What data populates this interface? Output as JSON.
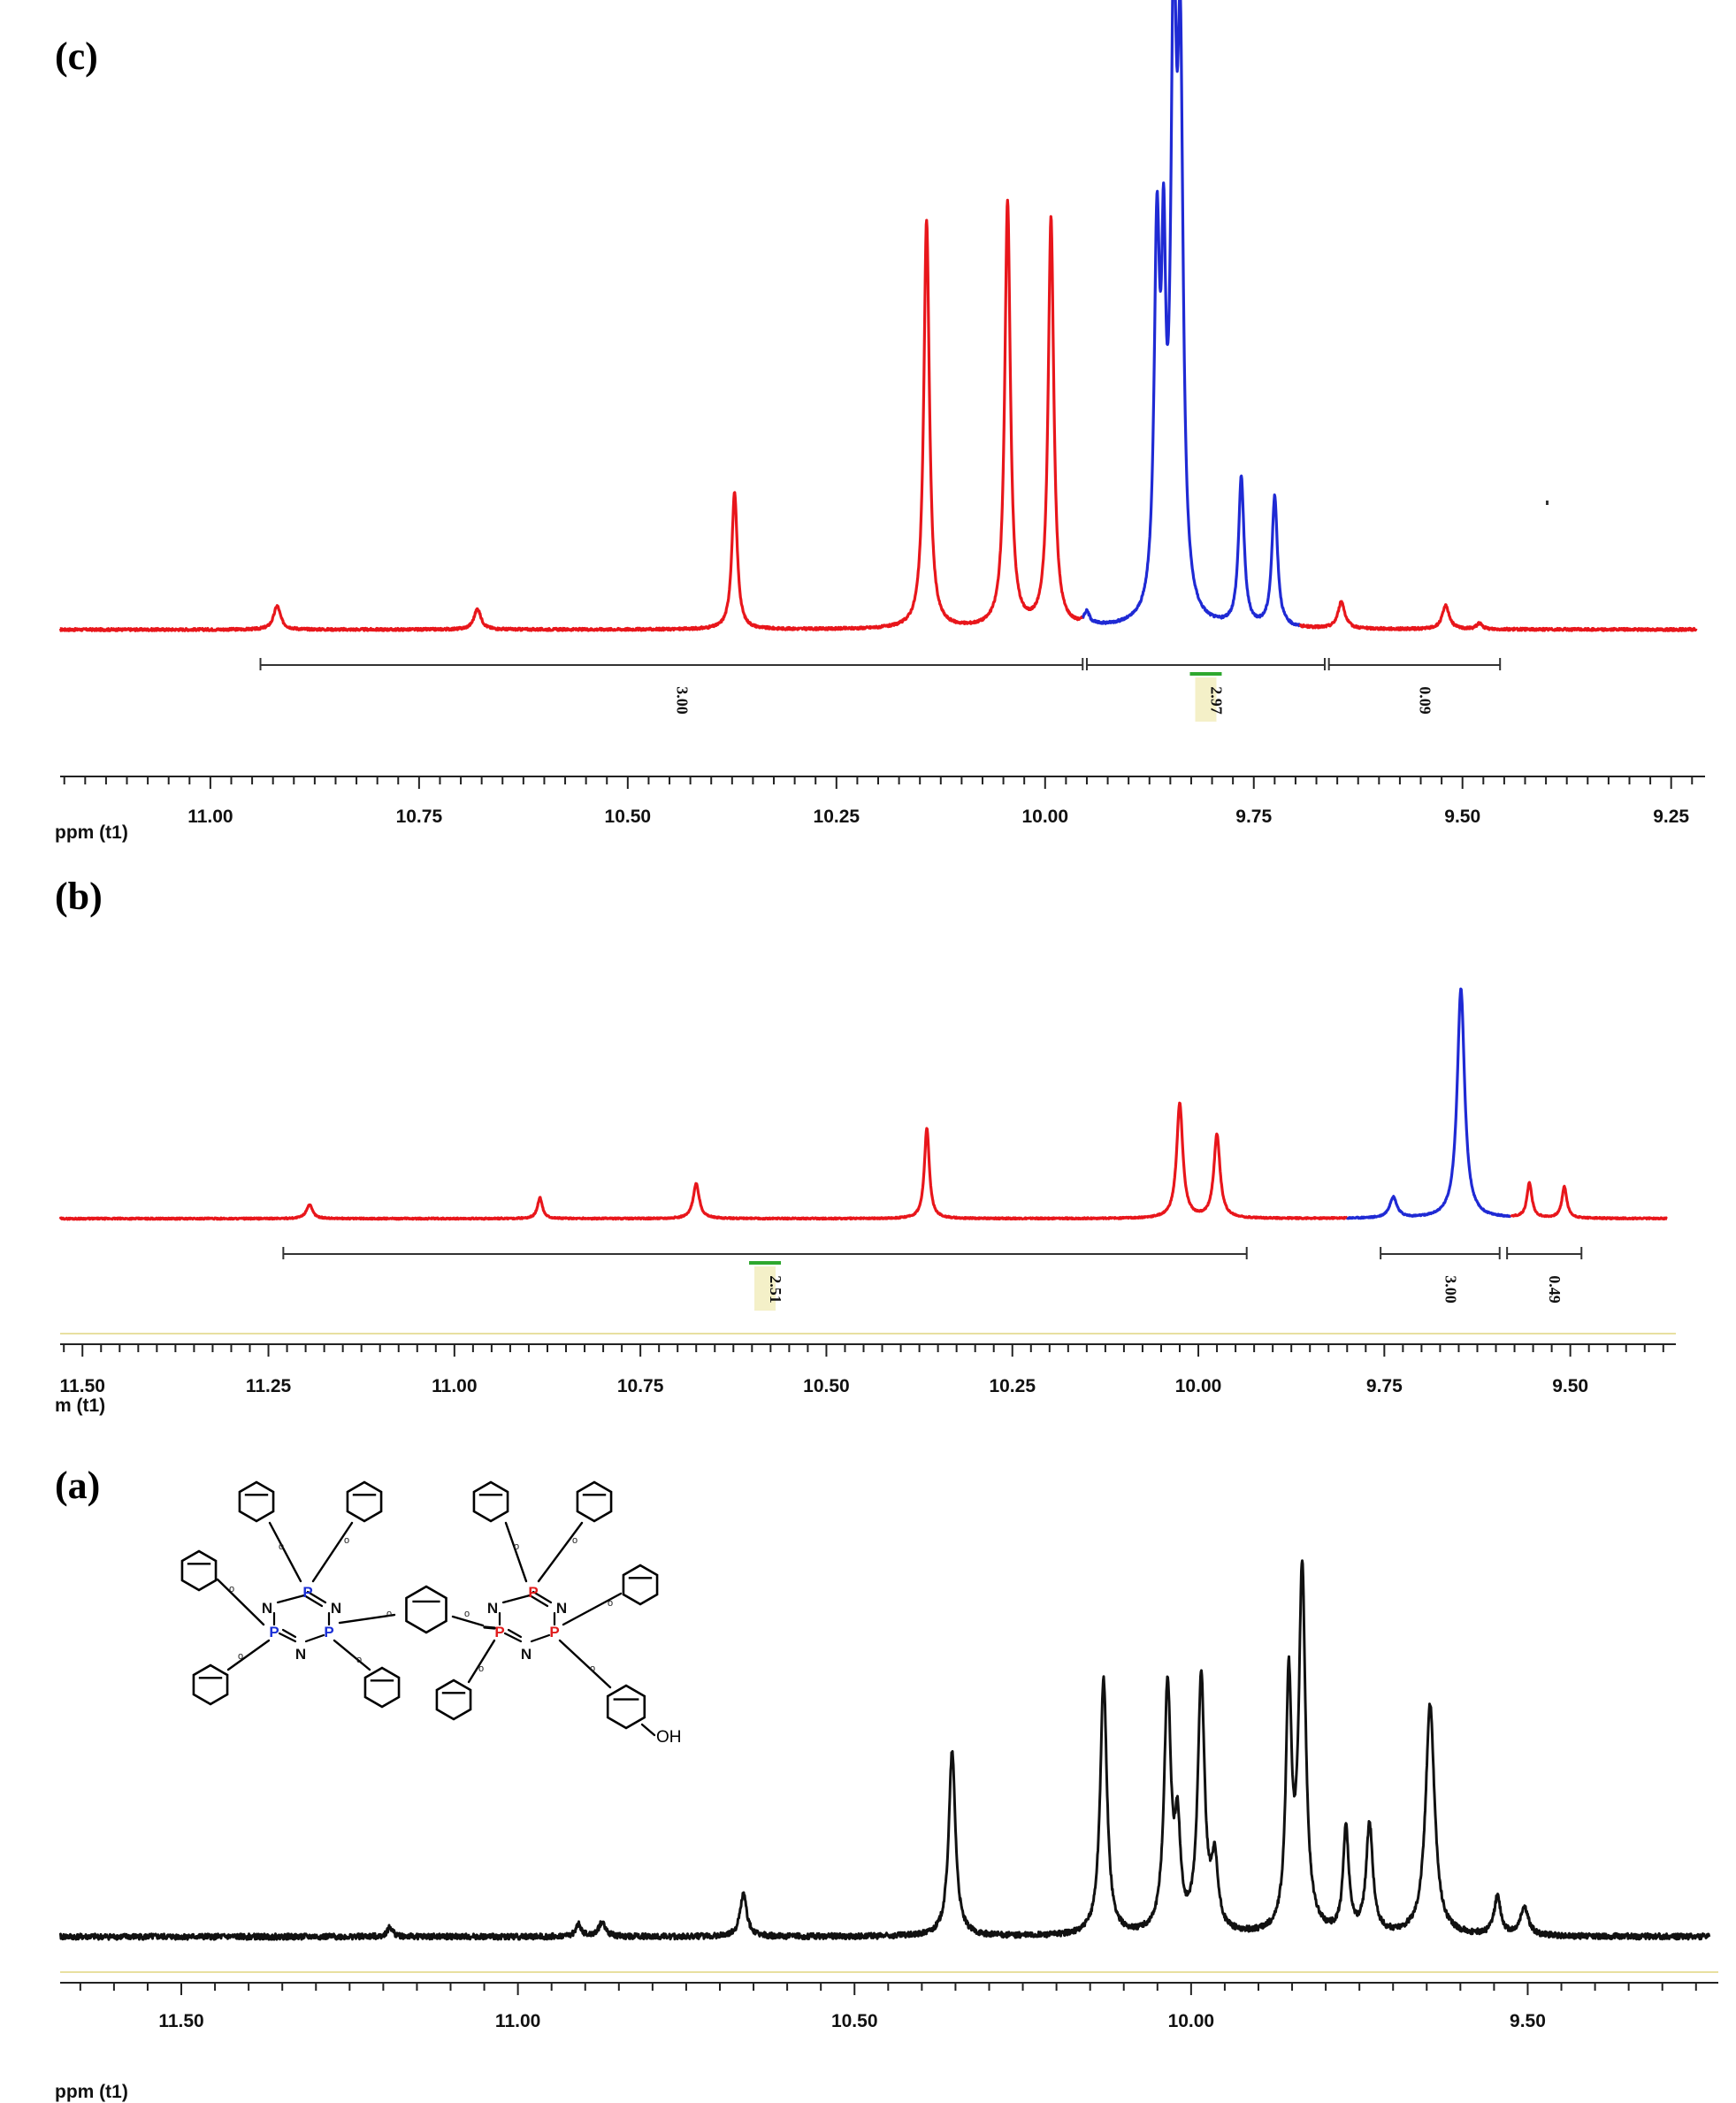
{
  "figure": {
    "panels": [
      {
        "id": "c",
        "label": "(c)",
        "axis_unit": "ppm (t1)",
        "ticks": [
          "11.00",
          "10.75",
          "10.50",
          "10.25",
          "10.00",
          "9.75",
          "9.50",
          "9.25"
        ],
        "integrals": [
          "3.00",
          "2.97",
          "0.09"
        ]
      },
      {
        "id": "b",
        "label": "(b)",
        "axis_unit": "m (t1)",
        "ticks": [
          "11.50",
          "11.25",
          "11.00",
          "10.75",
          "10.50",
          "10.25",
          "10.00",
          "9.75",
          "9.50"
        ],
        "integrals": [
          "2.51",
          "3.00",
          "0.49"
        ]
      },
      {
        "id": "a",
        "label": "(a)",
        "axis_unit": "ppm (t1)",
        "ticks": [
          "11.50",
          "11.00",
          "10.50",
          "10.00",
          "9.50"
        ],
        "integrals": []
      }
    ],
    "structure": {
      "phosphorus_label": "P",
      "nitrogen_label": "N",
      "oxygen_label": "O",
      "hydroxyl_label": "OH",
      "colors": {
        "left_ring_p": "#1a2fd6",
        "right_ring_p": "#e01b1b",
        "bond": "#000000"
      }
    }
  },
  "chart_data": [
    {
      "panel": "(c)",
      "type": "line",
      "xlabel": "ppm (t1)",
      "xlim": [
        11.18,
        9.22
      ],
      "x_reversed": true,
      "xticks": [
        11.0,
        10.75,
        10.5,
        10.25,
        10.0,
        9.75,
        9.5,
        9.25
      ],
      "ylim": [
        0,
        1.0
      ],
      "series": [
        {
          "color": "#e8161b",
          "baseline": 0.02,
          "range": [
            11.18,
            9.955
          ],
          "peaks": [
            {
              "x": 10.92,
              "y": 0.04,
              "w": 0.005
            },
            {
              "x": 10.68,
              "y": 0.035,
              "w": 0.005
            },
            {
              "x": 10.372,
              "y": 0.23,
              "w": 0.004
            },
            {
              "x": 10.142,
              "y": 0.69,
              "w": 0.004
            },
            {
              "x": 10.045,
              "y": 0.72,
              "w": 0.004
            },
            {
              "x": 9.993,
              "y": 0.69,
              "w": 0.004
            }
          ]
        },
        {
          "color": "#1f2ad4",
          "baseline": 0.02,
          "range": [
            9.955,
            9.695
          ],
          "peaks": [
            {
              "x": 9.95,
              "y": 0.02,
              "w": 0.004
            },
            {
              "x": 9.866,
              "y": 0.62,
              "w": 0.004
            },
            {
              "x": 9.858,
              "y": 0.5,
              "w": 0.003
            },
            {
              "x": 9.846,
              "y": 0.96,
              "w": 0.004
            },
            {
              "x": 9.838,
              "y": 0.86,
              "w": 0.004
            },
            {
              "x": 9.765,
              "y": 0.25,
              "w": 0.004
            },
            {
              "x": 9.725,
              "y": 0.22,
              "w": 0.004
            }
          ]
        },
        {
          "color": "#e8161b",
          "baseline": 0.02,
          "range": [
            9.695,
            9.22
          ],
          "peaks": [
            {
              "x": 9.645,
              "y": 0.045,
              "w": 0.005
            },
            {
              "x": 9.52,
              "y": 0.04,
              "w": 0.005
            },
            {
              "x": 9.48,
              "y": 0.01,
              "w": 0.004
            }
          ]
        }
      ],
      "integrals": [
        {
          "from": 10.94,
          "to": 9.955,
          "value": "3.00"
        },
        {
          "from": 9.95,
          "to": 9.665,
          "value": "2.97"
        },
        {
          "from": 9.66,
          "to": 9.455,
          "value": "0.09"
        }
      ]
    },
    {
      "panel": "(b)",
      "type": "line",
      "xlabel": "m (t1)",
      "xlim": [
        11.53,
        9.37
      ],
      "x_reversed": true,
      "xticks": [
        11.5,
        11.25,
        11.0,
        10.75,
        10.5,
        10.25,
        10.0,
        9.75,
        9.5
      ],
      "ylim": [
        0,
        1.0
      ],
      "series": [
        {
          "color": "#e8161b",
          "baseline": 0.02,
          "range": [
            11.53,
            9.8
          ],
          "peaks": [
            {
              "x": 11.195,
              "y": 0.04,
              "w": 0.005
            },
            {
              "x": 10.885,
              "y": 0.06,
              "w": 0.004
            },
            {
              "x": 10.675,
              "y": 0.1,
              "w": 0.005
            },
            {
              "x": 10.365,
              "y": 0.26,
              "w": 0.004
            },
            {
              "x": 10.025,
              "y": 0.33,
              "w": 0.005
            },
            {
              "x": 9.975,
              "y": 0.24,
              "w": 0.005
            }
          ]
        },
        {
          "color": "#1f2ad4",
          "baseline": 0.02,
          "range": [
            9.8,
            9.58
          ],
          "peaks": [
            {
              "x": 9.738,
              "y": 0.06,
              "w": 0.006
            },
            {
              "x": 9.647,
              "y": 0.66,
              "w": 0.006
            }
          ]
        },
        {
          "color": "#e8161b",
          "baseline": 0.02,
          "range": [
            9.58,
            9.37
          ],
          "peaks": [
            {
              "x": 9.555,
              "y": 0.1,
              "w": 0.004
            },
            {
              "x": 9.508,
              "y": 0.09,
              "w": 0.004
            }
          ]
        }
      ],
      "integrals": [
        {
          "from": 11.23,
          "to": 9.935,
          "value": "2.51"
        },
        {
          "from": 9.755,
          "to": 9.595,
          "value": "3.00"
        },
        {
          "from": 9.585,
          "to": 9.485,
          "value": "0.49"
        }
      ]
    },
    {
      "panel": "(a)",
      "type": "line",
      "xlabel": "ppm (t1)",
      "xlim": [
        11.68,
        9.23
      ],
      "x_reversed": true,
      "xticks": [
        11.5,
        11.0,
        10.5,
        10.0,
        9.5
      ],
      "ylim": [
        0,
        1.0
      ],
      "series": [
        {
          "color": "#111111",
          "baseline": 0.03,
          "range": [
            11.68,
            9.23
          ],
          "peaks": [
            {
              "x": 11.19,
              "y": 0.02,
              "w": 0.005
            },
            {
              "x": 10.91,
              "y": 0.025,
              "w": 0.005
            },
            {
              "x": 10.875,
              "y": 0.03,
              "w": 0.006
            },
            {
              "x": 10.665,
              "y": 0.09,
              "w": 0.006
            },
            {
              "x": 10.355,
              "y": 0.39,
              "w": 0.006
            },
            {
              "x": 10.13,
              "y": 0.54,
              "w": 0.006
            },
            {
              "x": 10.035,
              "y": 0.52,
              "w": 0.006
            },
            {
              "x": 10.02,
              "y": 0.2,
              "w": 0.005
            },
            {
              "x": 9.985,
              "y": 0.54,
              "w": 0.006
            },
            {
              "x": 9.965,
              "y": 0.14,
              "w": 0.006
            },
            {
              "x": 9.855,
              "y": 0.52,
              "w": 0.005
            },
            {
              "x": 9.835,
              "y": 0.76,
              "w": 0.006
            },
            {
              "x": 9.77,
              "y": 0.22,
              "w": 0.005
            },
            {
              "x": 9.735,
              "y": 0.23,
              "w": 0.006
            },
            {
              "x": 9.645,
              "y": 0.49,
              "w": 0.008
            },
            {
              "x": 9.545,
              "y": 0.08,
              "w": 0.006
            },
            {
              "x": 9.505,
              "y": 0.06,
              "w": 0.007
            }
          ]
        }
      ],
      "integrals": []
    }
  ]
}
